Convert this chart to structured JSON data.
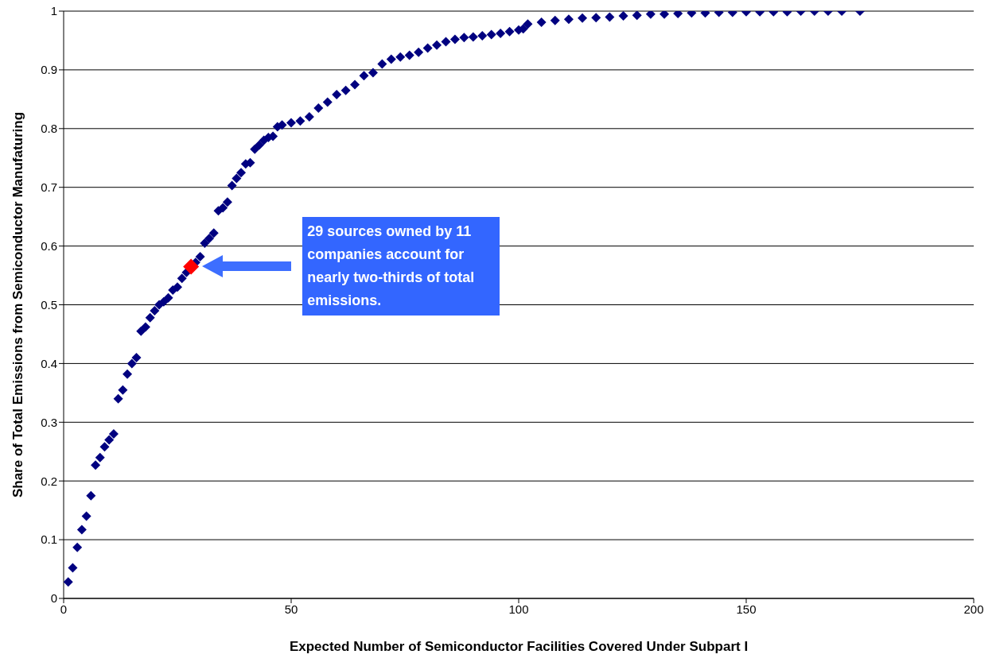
{
  "chart_data": {
    "type": "scatter",
    "xlabel": "Expected Number of Semiconductor Facilities Covered Under Subpart I",
    "ylabel": "Share of Total Emissions from Semiconductor Manufaturing",
    "xlim": [
      0,
      200
    ],
    "xticks": [
      0,
      50,
      100,
      150,
      200
    ],
    "ylim": [
      0,
      1
    ],
    "yticks": [
      0,
      0.1,
      0.2,
      0.3,
      0.4,
      0.5,
      0.6,
      0.7,
      0.8,
      0.9,
      1
    ],
    "grid": "y",
    "marker": "diamond",
    "legend": false,
    "annotations": [
      "29 sources owned by 11 companies account for nearly two-thirds of total emissions."
    ],
    "series": [
      {
        "color": "#000080",
        "x": [
          1,
          2,
          3,
          4,
          5,
          6,
          7,
          8,
          9,
          10,
          11,
          12,
          13,
          14,
          15,
          16,
          17,
          18,
          19,
          20,
          21,
          22,
          23,
          24,
          25,
          26,
          27,
          29,
          30,
          31,
          32,
          33,
          34,
          35,
          36,
          37,
          38,
          39,
          40,
          41,
          42,
          43,
          44,
          45,
          46,
          47,
          48,
          50,
          52,
          54,
          56,
          58,
          60,
          62,
          64,
          66,
          68,
          70,
          72,
          74,
          76,
          78,
          80,
          82,
          84,
          86,
          88,
          90,
          92,
          94,
          96,
          98,
          100,
          101,
          102,
          105,
          108,
          111,
          114,
          117,
          120,
          123,
          126,
          129,
          132,
          135,
          138,
          141,
          144,
          147,
          150,
          153,
          156,
          159,
          162,
          165,
          168,
          171,
          175
        ],
        "values": [
          0.028,
          0.052,
          0.087,
          0.117,
          0.14,
          0.175,
          0.227,
          0.24,
          0.258,
          0.27,
          0.28,
          0.34,
          0.355,
          0.382,
          0.4,
          0.41,
          0.455,
          0.462,
          0.478,
          0.49,
          0.5,
          0.505,
          0.512,
          0.525,
          0.53,
          0.545,
          0.555,
          0.572,
          0.582,
          0.605,
          0.613,
          0.622,
          0.66,
          0.665,
          0.675,
          0.703,
          0.715,
          0.725,
          0.74,
          0.742,
          0.765,
          0.772,
          0.78,
          0.785,
          0.787,
          0.803,
          0.806,
          0.81,
          0.813,
          0.82,
          0.835,
          0.845,
          0.858,
          0.865,
          0.875,
          0.89,
          0.895,
          0.91,
          0.918,
          0.922,
          0.925,
          0.93,
          0.937,
          0.942,
          0.948,
          0.952,
          0.955,
          0.956,
          0.958,
          0.96,
          0.962,
          0.965,
          0.968,
          0.97,
          0.978,
          0.981,
          0.984,
          0.986,
          0.988,
          0.989,
          0.99,
          0.992,
          0.993,
          0.995,
          0.995,
          0.996,
          0.997,
          0.997,
          0.998,
          0.998,
          0.999,
          0.999,
          0.999,
          0.999,
          1,
          1,
          1,
          1,
          1
        ]
      },
      {
        "color": "#ff0000",
        "x": [
          28
        ],
        "values": [
          0.565
        ]
      }
    ]
  }
}
